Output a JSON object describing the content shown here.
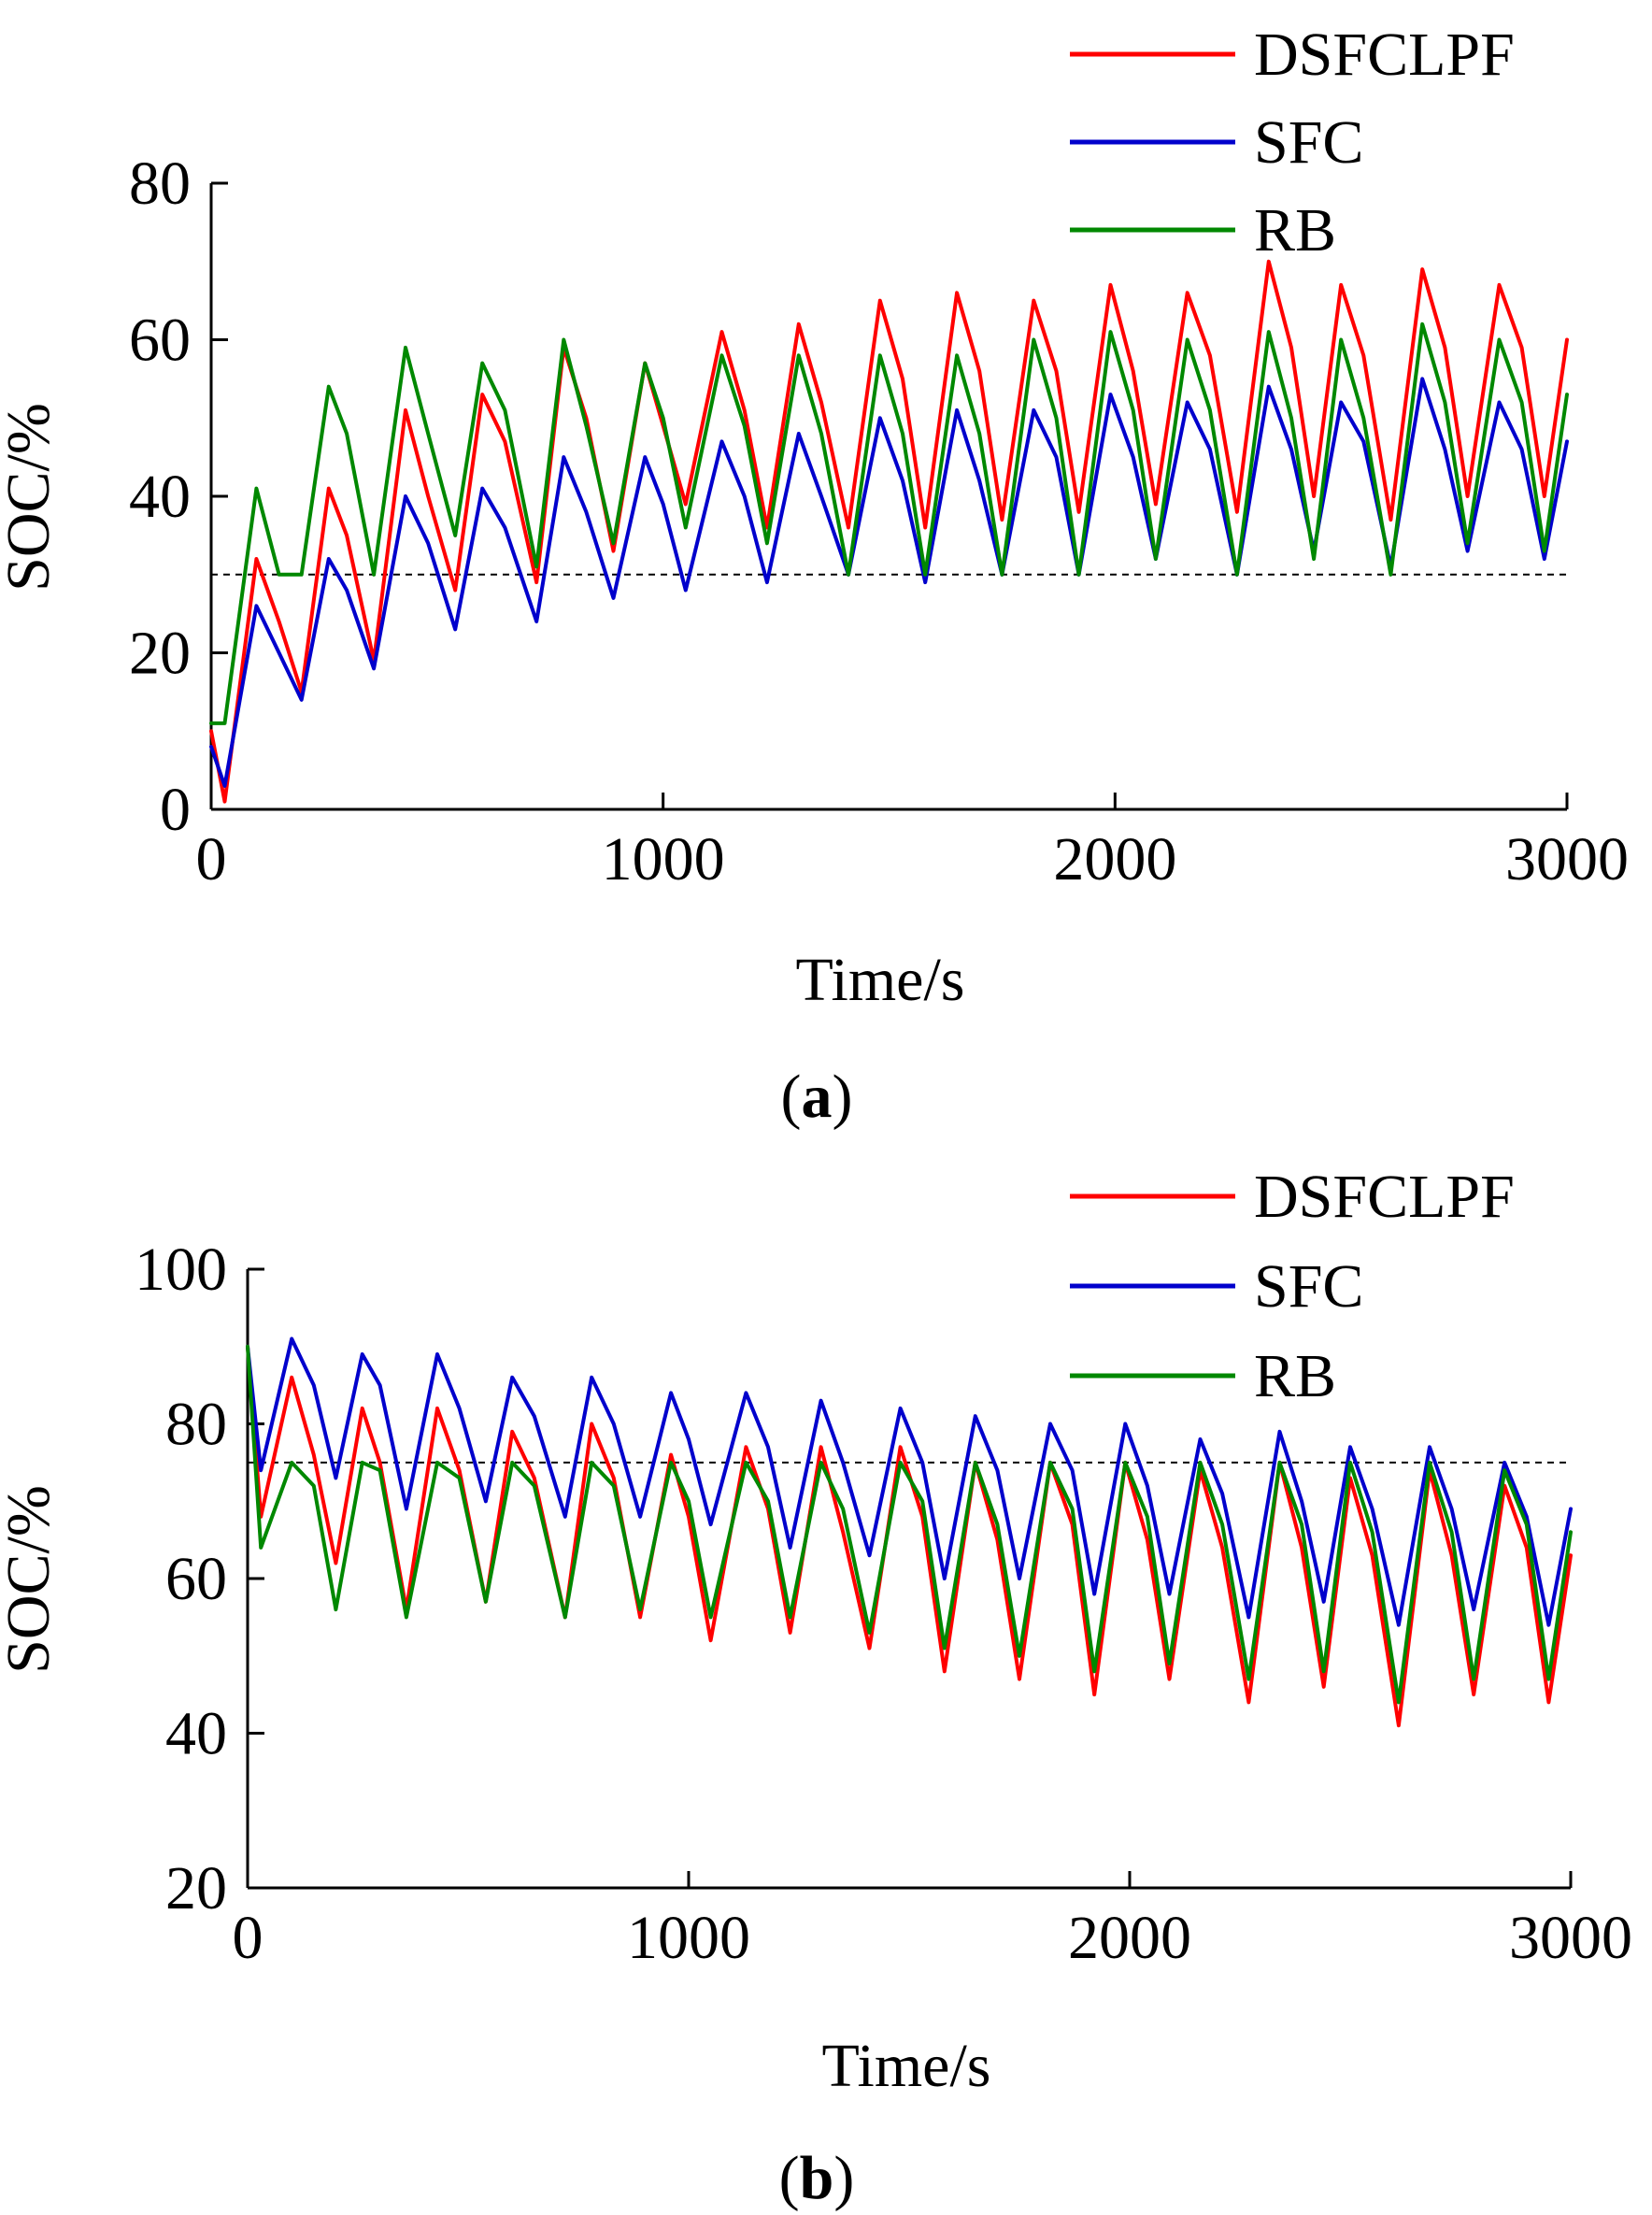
{
  "figure": {
    "panels": [
      "a",
      "b"
    ]
  },
  "chart_data": [
    {
      "type": "line",
      "panel_label": "a",
      "xlabel": "Time/s",
      "ylabel": "SOC/%",
      "xlim": [
        0,
        3000
      ],
      "ylim": [
        0,
        80
      ],
      "xticks": [
        0,
        1000,
        2000,
        3000
      ],
      "yticks": [
        0,
        20,
        40,
        60,
        80
      ],
      "xtick_labels": [
        "0",
        "1000",
        "2000",
        "3000"
      ],
      "ytick_labels": [
        "0",
        "20",
        "40",
        "60",
        "80"
      ],
      "reference_line": {
        "y": 30,
        "style": "dashed"
      },
      "legend_position": "top-right",
      "legend": [
        "DSFCLPF",
        "SFC",
        "RB"
      ],
      "series": [
        {
          "name": "DSFCLPF",
          "color": "#ff0000",
          "x": [
            0,
            30,
            100,
            150,
            200,
            260,
            300,
            360,
            430,
            480,
            540,
            600,
            650,
            720,
            780,
            830,
            890,
            960,
            1000,
            1050,
            1130,
            1180,
            1230,
            1300,
            1350,
            1410,
            1480,
            1530,
            1580,
            1650,
            1700,
            1750,
            1820,
            1870,
            1920,
            1990,
            2040,
            2090,
            2160,
            2210,
            2270,
            2340,
            2390,
            2440,
            2500,
            2550,
            2610,
            2680,
            2730,
            2780,
            2850,
            2900,
            2950,
            3000
          ],
          "values": [
            10,
            1,
            32,
            24,
            15,
            41,
            35,
            19,
            51,
            40,
            28,
            53,
            47,
            29,
            59,
            50,
            33,
            57,
            49,
            39,
            61,
            51,
            36,
            62,
            52,
            36,
            65,
            55,
            36,
            66,
            56,
            37,
            65,
            56,
            38,
            67,
            56,
            39,
            66,
            58,
            38,
            70,
            59,
            40,
            67,
            58,
            37,
            69,
            59,
            40,
            67,
            59,
            40,
            60
          ]
        },
        {
          "name": "SFC",
          "color": "#0000cc",
          "x": [
            0,
            30,
            100,
            150,
            200,
            260,
            300,
            360,
            430,
            480,
            540,
            600,
            650,
            720,
            780,
            830,
            890,
            960,
            1000,
            1050,
            1130,
            1180,
            1230,
            1300,
            1350,
            1410,
            1480,
            1530,
            1580,
            1650,
            1700,
            1750,
            1820,
            1870,
            1920,
            1990,
            2040,
            2090,
            2160,
            2210,
            2270,
            2340,
            2390,
            2440,
            2500,
            2550,
            2610,
            2680,
            2730,
            2780,
            2850,
            2900,
            2950,
            3000
          ],
          "values": [
            8,
            3,
            26,
            20,
            14,
            32,
            28,
            18,
            40,
            34,
            23,
            41,
            36,
            24,
            45,
            38,
            27,
            45,
            39,
            28,
            47,
            40,
            29,
            48,
            40,
            30,
            50,
            42,
            29,
            51,
            42,
            30,
            51,
            45,
            30,
            53,
            45,
            32,
            52,
            46,
            30,
            54,
            46,
            33,
            52,
            47,
            31,
            55,
            46,
            33,
            52,
            46,
            32,
            47
          ]
        },
        {
          "name": "RB",
          "color": "#008800",
          "x": [
            0,
            30,
            100,
            150,
            200,
            260,
            300,
            360,
            430,
            480,
            540,
            600,
            650,
            720,
            780,
            830,
            890,
            960,
            1000,
            1050,
            1130,
            1180,
            1230,
            1300,
            1350,
            1410,
            1480,
            1530,
            1580,
            1650,
            1700,
            1750,
            1820,
            1870,
            1920,
            1990,
            2040,
            2090,
            2160,
            2210,
            2270,
            2340,
            2390,
            2440,
            2500,
            2550,
            2610,
            2680,
            2730,
            2780,
            2850,
            2900,
            2950,
            3000
          ],
          "values": [
            11,
            11,
            41,
            30,
            30,
            54,
            48,
            30,
            59,
            48,
            35,
            57,
            51,
            31,
            60,
            49,
            34,
            57,
            50,
            36,
            58,
            49,
            34,
            58,
            48,
            30,
            58,
            48,
            30,
            58,
            48,
            30,
            60,
            50,
            30,
            61,
            51,
            32,
            60,
            51,
            30,
            61,
            50,
            32,
            60,
            50,
            30,
            62,
            52,
            34,
            60,
            52,
            33,
            53
          ]
        }
      ]
    },
    {
      "type": "line",
      "panel_label": "b",
      "xlabel": "Time/s",
      "ylabel": "SOC/%",
      "xlim": [
        0,
        3000
      ],
      "ylim": [
        20,
        100
      ],
      "xticks": [
        0,
        1000,
        2000,
        3000
      ],
      "yticks": [
        20,
        40,
        60,
        80,
        100
      ],
      "xtick_labels": [
        "0",
        "1000",
        "2000",
        "3000"
      ],
      "ytick_labels": [
        "20",
        "40",
        "60",
        "80",
        "100"
      ],
      "reference_line": {
        "y": 75,
        "style": "dashed"
      },
      "legend_position": "top-right",
      "legend": [
        "DSFCLPF",
        "SFC",
        "RB"
      ],
      "series": [
        {
          "name": "DSFCLPF",
          "color": "#ff0000",
          "x": [
            0,
            30,
            100,
            150,
            200,
            260,
            300,
            360,
            430,
            480,
            540,
            600,
            650,
            720,
            780,
            830,
            890,
            960,
            1000,
            1050,
            1130,
            1180,
            1230,
            1300,
            1350,
            1410,
            1480,
            1530,
            1580,
            1650,
            1700,
            1750,
            1820,
            1870,
            1920,
            1990,
            2040,
            2090,
            2160,
            2210,
            2270,
            2340,
            2390,
            2440,
            2500,
            2550,
            2610,
            2680,
            2730,
            2780,
            2850,
            2900,
            2950,
            3000
          ],
          "values": [
            90,
            68,
            86,
            76,
            62,
            82,
            75,
            56,
            82,
            74,
            57,
            79,
            73,
            55,
            80,
            73,
            55,
            76,
            68,
            52,
            77,
            69,
            53,
            77,
            66,
            51,
            77,
            68,
            48,
            75,
            65,
            47,
            75,
            67,
            45,
            75,
            65,
            47,
            74,
            64,
            44,
            75,
            64,
            46,
            73,
            63,
            41,
            74,
            63,
            45,
            72,
            64,
            44,
            63
          ]
        },
        {
          "name": "SFC",
          "color": "#0000cc",
          "x": [
            0,
            30,
            100,
            150,
            200,
            260,
            300,
            360,
            430,
            480,
            540,
            600,
            650,
            720,
            780,
            830,
            890,
            960,
            1000,
            1050,
            1130,
            1180,
            1230,
            1300,
            1350,
            1410,
            1480,
            1530,
            1580,
            1650,
            1700,
            1750,
            1820,
            1870,
            1920,
            1990,
            2040,
            2090,
            2160,
            2210,
            2270,
            2340,
            2390,
            2440,
            2500,
            2550,
            2610,
            2680,
            2730,
            2780,
            2850,
            2900,
            2950,
            3000
          ],
          "values": [
            90,
            74,
            91,
            85,
            73,
            89,
            85,
            69,
            89,
            82,
            70,
            86,
            81,
            68,
            86,
            80,
            68,
            84,
            78,
            67,
            84,
            77,
            64,
            83,
            75,
            63,
            82,
            75,
            60,
            81,
            74,
            60,
            80,
            74,
            58,
            80,
            72,
            58,
            78,
            71,
            55,
            79,
            70,
            57,
            77,
            69,
            54,
            77,
            69,
            56,
            75,
            68,
            54,
            69
          ]
        },
        {
          "name": "RB",
          "color": "#008800",
          "x": [
            0,
            30,
            100,
            150,
            200,
            260,
            300,
            360,
            430,
            480,
            540,
            600,
            650,
            720,
            780,
            830,
            890,
            960,
            1000,
            1050,
            1130,
            1180,
            1230,
            1300,
            1350,
            1410,
            1480,
            1530,
            1580,
            1650,
            1700,
            1750,
            1820,
            1870,
            1920,
            1990,
            2040,
            2090,
            2160,
            2210,
            2270,
            2340,
            2390,
            2440,
            2500,
            2550,
            2610,
            2680,
            2730,
            2780,
            2850,
            2900,
            2950,
            3000
          ],
          "values": [
            90,
            64,
            75,
            72,
            56,
            75,
            74,
            55,
            75,
            73,
            57,
            75,
            72,
            55,
            75,
            72,
            56,
            75,
            70,
            55,
            75,
            70,
            55,
            75,
            69,
            53,
            75,
            70,
            51,
            75,
            67,
            50,
            75,
            69,
            48,
            75,
            68,
            49,
            75,
            67,
            47,
            75,
            67,
            48,
            75,
            66,
            44,
            75,
            66,
            47,
            74,
            67,
            47,
            66
          ]
        }
      ]
    }
  ]
}
